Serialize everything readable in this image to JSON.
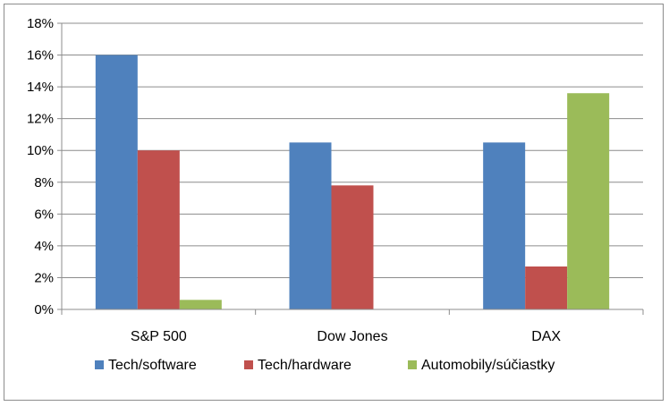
{
  "chart_data": {
    "type": "bar",
    "categories": [
      "S&P 500",
      "Dow Jones",
      "DAX"
    ],
    "series": [
      {
        "name": "Tech/software",
        "values": [
          16.0,
          10.5,
          10.5
        ],
        "color": "#4f81bd"
      },
      {
        "name": "Tech/hardware",
        "values": [
          10.0,
          7.8,
          2.7
        ],
        "color": "#c0504d"
      },
      {
        "name": "Automobily/súčiastky",
        "values": [
          0.6,
          0.0,
          13.6
        ],
        "color": "#9bbb59"
      }
    ],
    "ylim": [
      0,
      18
    ],
    "ytick_step": 2,
    "ytick_labels": [
      "0%",
      "2%",
      "4%",
      "6%",
      "8%",
      "10%",
      "12%",
      "14%",
      "16%",
      "18%"
    ],
    "grid": true,
    "legend_position": "bottom"
  }
}
